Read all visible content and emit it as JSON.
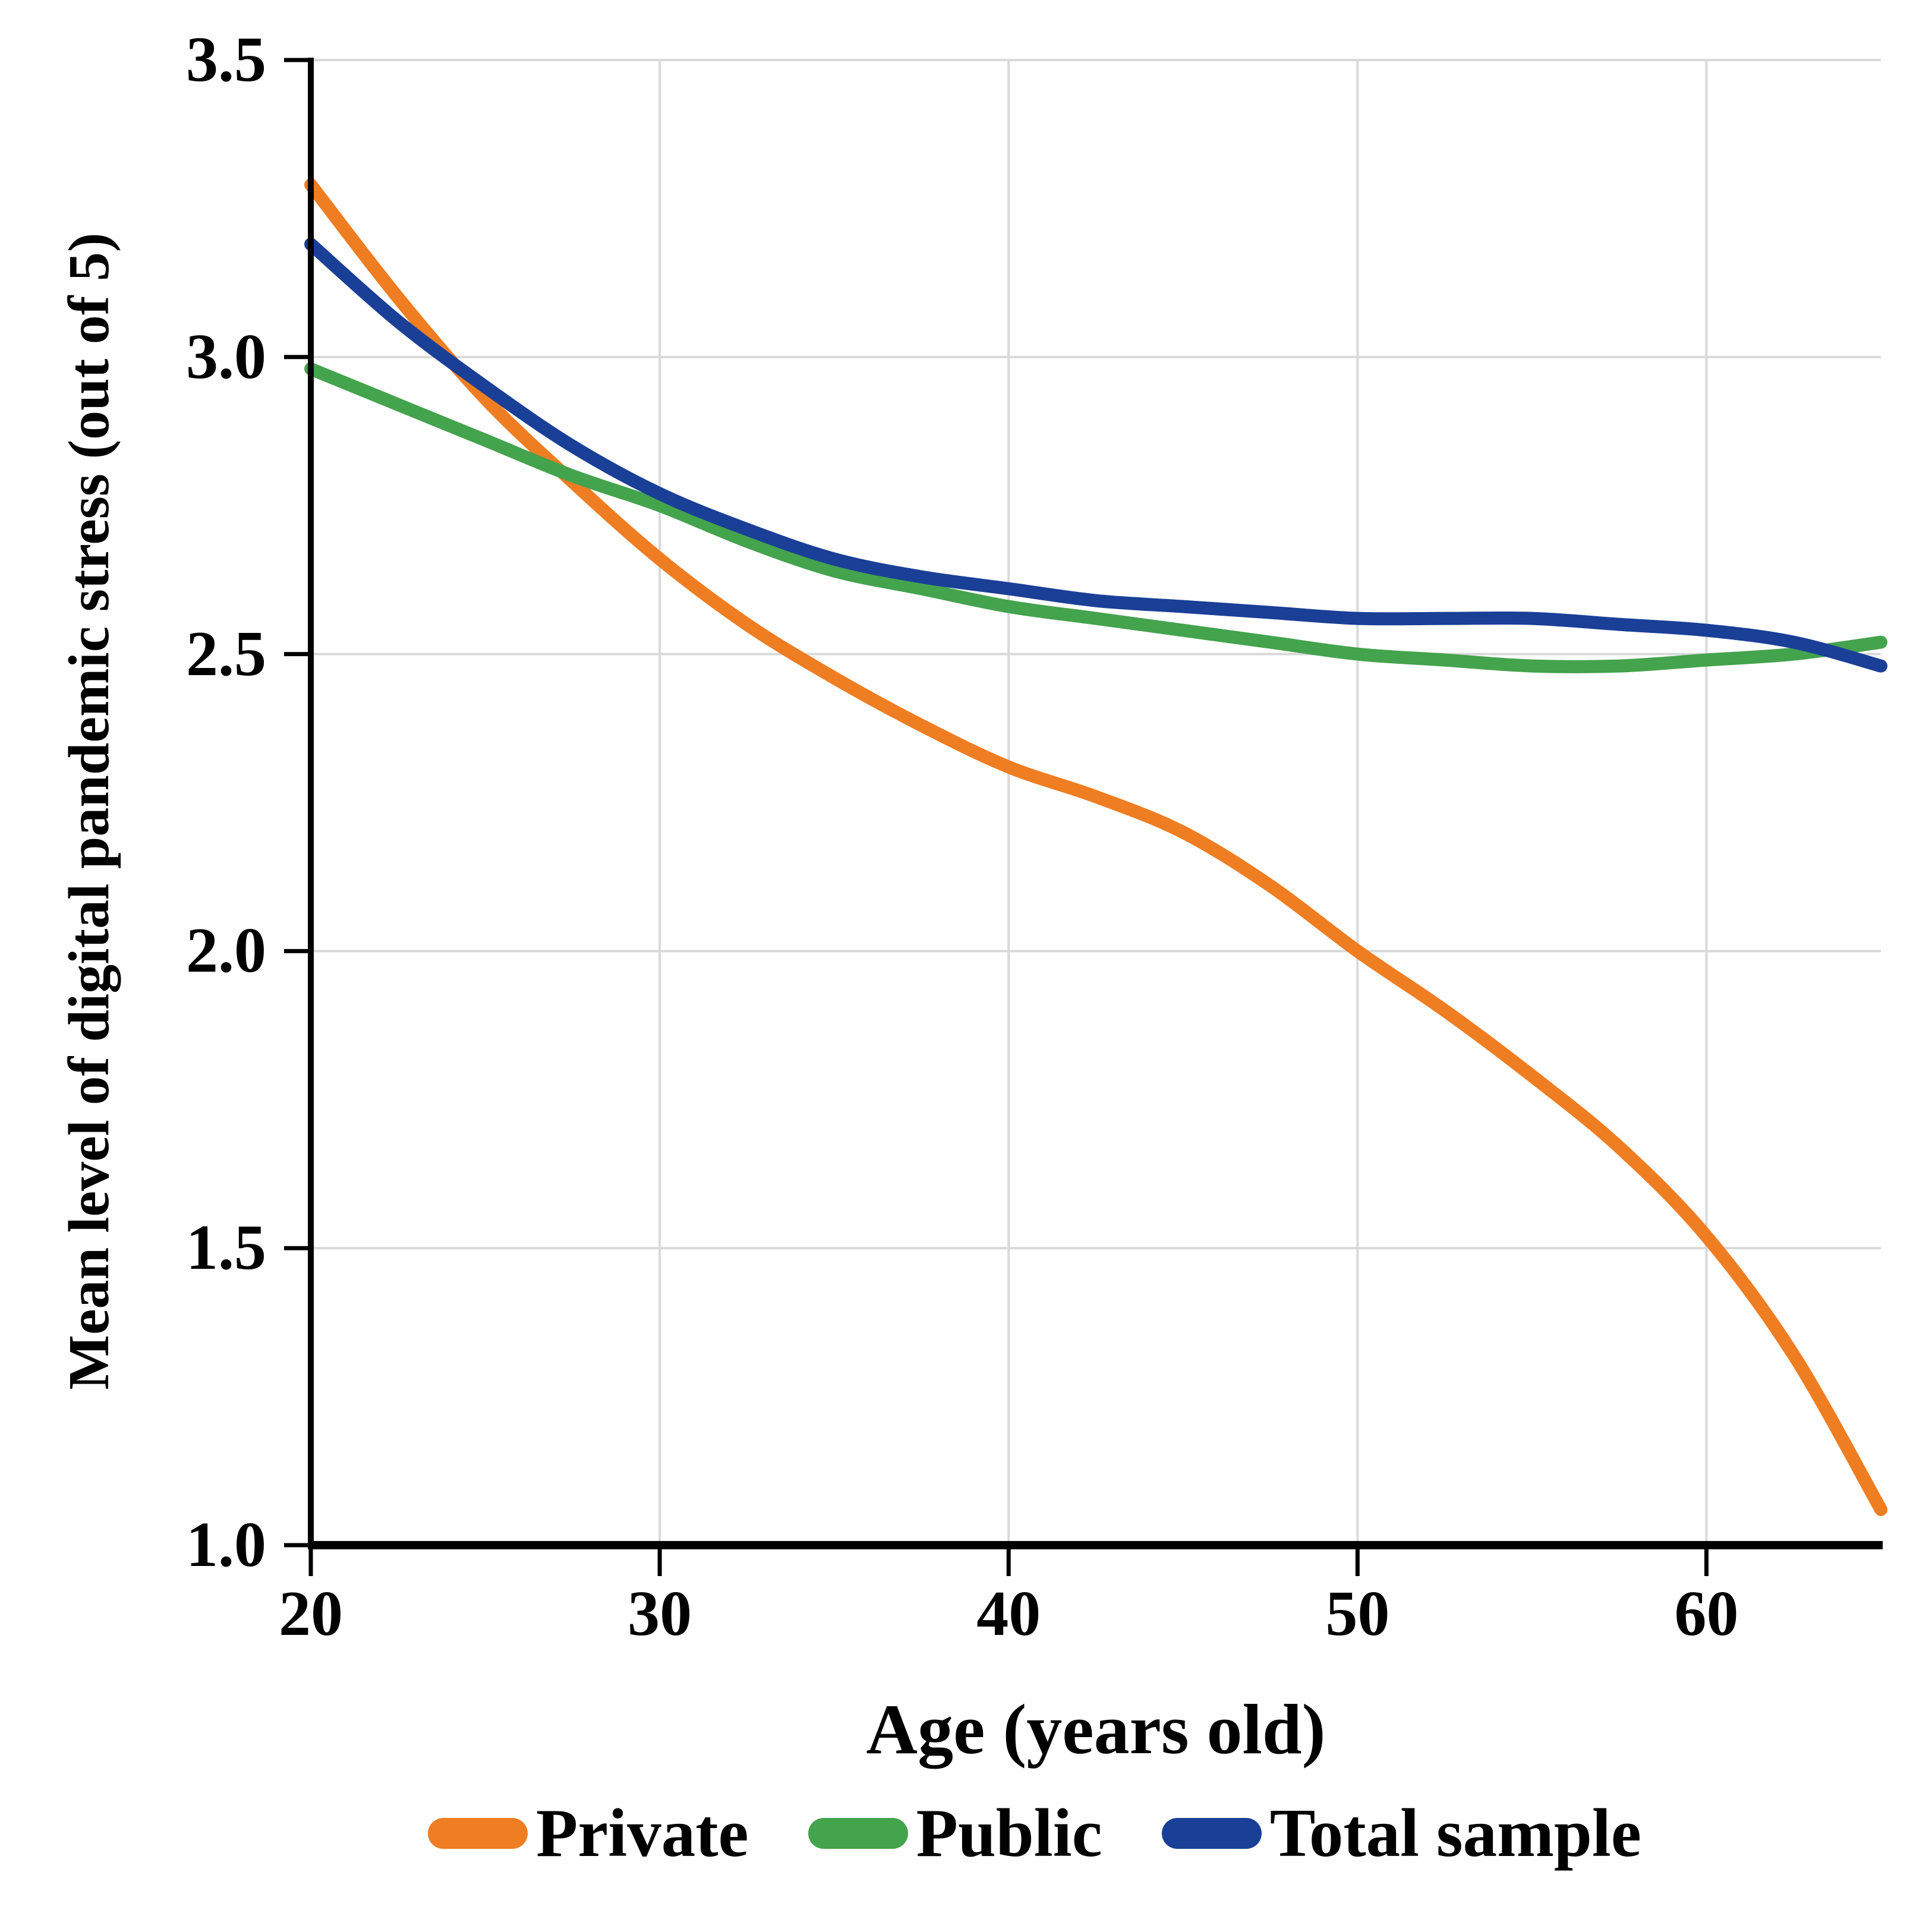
{
  "figure": {
    "background": "#FFFFFF"
  },
  "chart_data": {
    "type": "line",
    "title": "",
    "xlabel": "Age (years old)",
    "ylabel": "Mean level of digital pandemic stress (out of 5)",
    "xlim": [
      20,
      65
    ],
    "ylim": [
      1.0,
      3.5
    ],
    "x_ticks": [
      20,
      30,
      40,
      50,
      60
    ],
    "x_tick_labels": [
      "20",
      "30",
      "40",
      "50",
      "60"
    ],
    "y_ticks": [
      3.5,
      3.0,
      2.5,
      2.0,
      1.5,
      1.0
    ],
    "y_tick_labels": [
      "3.5",
      "3.0",
      "2.5",
      "2.0",
      "1.5",
      "1.0"
    ],
    "grid": true,
    "legend_position": "bottom",
    "x": [
      20,
      22.5,
      25,
      27.5,
      30,
      32.5,
      35,
      37.5,
      40,
      42.5,
      45,
      47.5,
      50,
      52.5,
      55,
      57.5,
      60,
      62.5,
      65
    ],
    "series": [
      {
        "name": "Private",
        "color": "#EF7D22",
        "values": [
          3.29,
          3.1,
          2.93,
          2.79,
          2.66,
          2.55,
          2.46,
          2.38,
          2.31,
          2.26,
          2.2,
          2.11,
          2.0,
          1.9,
          1.79,
          1.67,
          1.52,
          1.32,
          1.06
        ]
      },
      {
        "name": "Public",
        "color": "#44A34D",
        "values": [
          2.98,
          2.92,
          2.86,
          2.8,
          2.75,
          2.69,
          2.64,
          2.61,
          2.58,
          2.56,
          2.54,
          2.52,
          2.5,
          2.49,
          2.48,
          2.48,
          2.49,
          2.5,
          2.52
        ]
      },
      {
        "name": "Total sample",
        "color": "#1A3F97",
        "values": [
          3.19,
          3.06,
          2.95,
          2.85,
          2.77,
          2.71,
          2.66,
          2.63,
          2.61,
          2.59,
          2.58,
          2.57,
          2.56,
          2.56,
          2.56,
          2.55,
          2.54,
          2.52,
          2.48
        ]
      }
    ],
    "colors": {
      "grid": "#D9D9D9",
      "axis": "#000000",
      "text": "#000000"
    }
  }
}
